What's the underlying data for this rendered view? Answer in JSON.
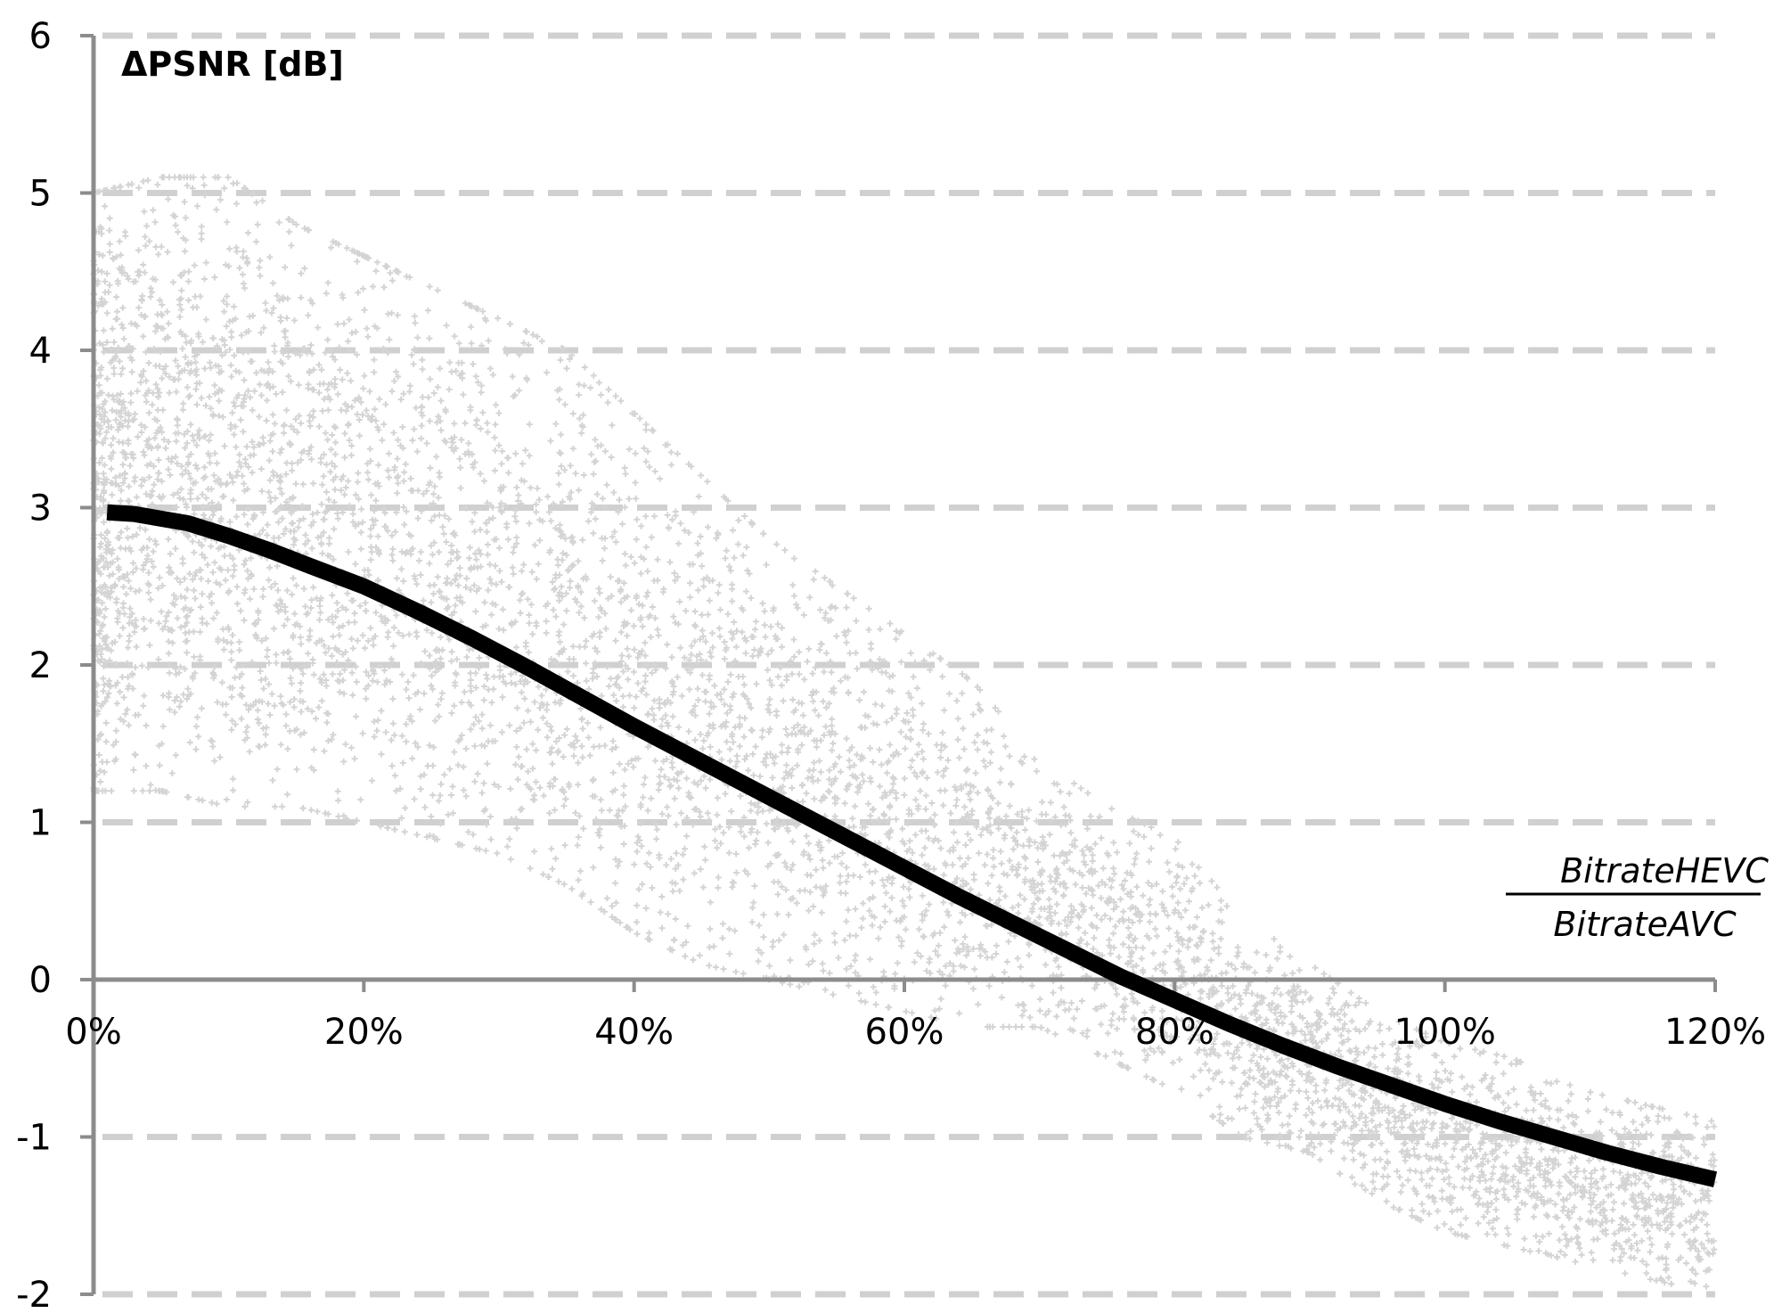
{
  "chart_data": {
    "type": "scatter",
    "ylabel": "ΔPSNR [dB]",
    "xlabel": {
      "numerator": "BitrateHEVC",
      "denominator": "BitrateAVC"
    },
    "xlim": [
      0,
      120
    ],
    "ylim": [
      -2,
      6
    ],
    "x_ticks": [
      0,
      20,
      40,
      60,
      80,
      100,
      120
    ],
    "x_tick_labels": [
      "0%",
      "20%",
      "40%",
      "60%",
      "80%",
      "100%",
      "120%"
    ],
    "y_ticks": [
      -2,
      -1,
      0,
      1,
      2,
      3,
      4,
      5,
      6
    ],
    "y_tick_labels": [
      "-2",
      "-1",
      "0",
      "1",
      "2",
      "3",
      "4",
      "5",
      "6"
    ],
    "grid": "horizontal-dashed",
    "colors": {
      "scatter": "#d4d4d4",
      "trend": "#000000",
      "grid": "#d0d0d0",
      "axis": "#8c8c8c"
    },
    "scatter_envelope": {
      "x": [
        0,
        5,
        10,
        15,
        20,
        25,
        30,
        35,
        40,
        45,
        50,
        55,
        60,
        65,
        70,
        75,
        80,
        85,
        90,
        95,
        100,
        105,
        110,
        115,
        120
      ],
      "upper": [
        5.0,
        5.1,
        5.1,
        4.8,
        4.6,
        4.4,
        4.2,
        4.0,
        3.6,
        3.2,
        2.8,
        2.5,
        2.2,
        1.9,
        1.4,
        1.1,
        0.9,
        0.4,
        0.1,
        -0.2,
        -0.4,
        -0.5,
        -0.7,
        -0.8,
        -0.9
      ],
      "lower": [
        1.2,
        1.2,
        1.1,
        1.1,
        1.0,
        0.9,
        0.8,
        0.6,
        0.3,
        0.1,
        0.0,
        -0.1,
        -0.2,
        -0.3,
        -0.3,
        -0.5,
        -0.7,
        -1.0,
        -1.1,
        -1.4,
        -1.6,
        -1.7,
        -1.8,
        -1.9,
        -2.0
      ]
    },
    "series": [
      {
        "type": "line",
        "x": [
          1,
          3,
          5,
          7,
          10,
          13,
          16,
          20,
          24,
          28,
          32,
          36,
          40,
          44,
          48,
          52,
          56,
          60,
          64,
          68,
          72,
          76,
          80,
          84,
          88,
          92,
          96,
          100,
          104,
          108,
          112,
          116,
          120
        ],
        "y": [
          2.97,
          2.96,
          2.93,
          2.9,
          2.82,
          2.73,
          2.63,
          2.5,
          2.34,
          2.17,
          1.99,
          1.8,
          1.61,
          1.43,
          1.25,
          1.07,
          0.89,
          0.71,
          0.53,
          0.36,
          0.19,
          0.02,
          -0.13,
          -0.28,
          -0.42,
          -0.55,
          -0.67,
          -0.79,
          -0.9,
          -1.0,
          -1.1,
          -1.19,
          -1.27
        ]
      }
    ]
  }
}
